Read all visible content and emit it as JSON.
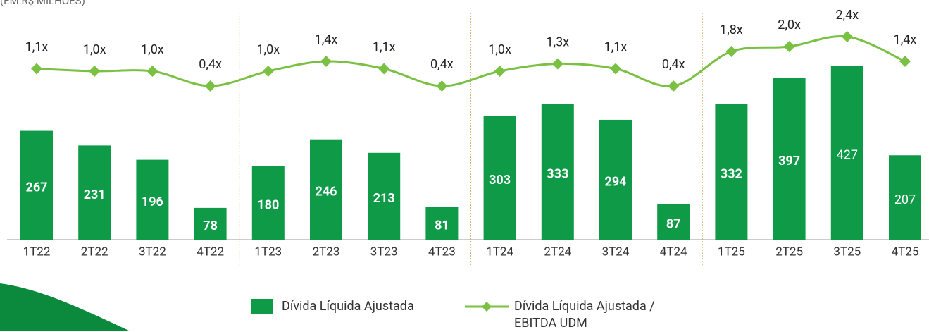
{
  "chart_data": {
    "type": "bar_line",
    "subtitle": "(EM R$ MILHÕES)",
    "categories": [
      "1T22",
      "2T22",
      "3T22",
      "4T22",
      "1T23",
      "2T23",
      "3T23",
      "4T23",
      "1T24",
      "2T24",
      "3T24",
      "4T24",
      "1T25",
      "2T25",
      "3T25",
      "4T25"
    ],
    "series": [
      {
        "name": "Dívida Líquida Ajustada",
        "type": "bar",
        "color": "#0e9a47",
        "values": [
          267,
          231,
          196,
          78,
          180,
          246,
          213,
          81,
          303,
          333,
          294,
          87,
          332,
          397,
          427,
          207
        ]
      },
      {
        "name": "Dívida Líquida Ajustada / EBITDA UDM",
        "type": "line",
        "color": "#7ac143",
        "values": [
          1.1,
          1.0,
          1.0,
          0.4,
          1.0,
          1.4,
          1.1,
          0.4,
          1.0,
          1.3,
          1.1,
          0.4,
          1.8,
          2.0,
          2.4,
          1.4
        ],
        "value_labels": [
          "1,1x",
          "1,0x",
          "1,0x",
          "0,4x",
          "1,0x",
          "1,4x",
          "1,1x",
          "0,4x",
          "1,0x",
          "1,3x",
          "1,1x",
          "0,4x",
          "1,8x",
          "2,0x",
          "2,4x",
          "1,4x"
        ]
      }
    ]
  }
}
